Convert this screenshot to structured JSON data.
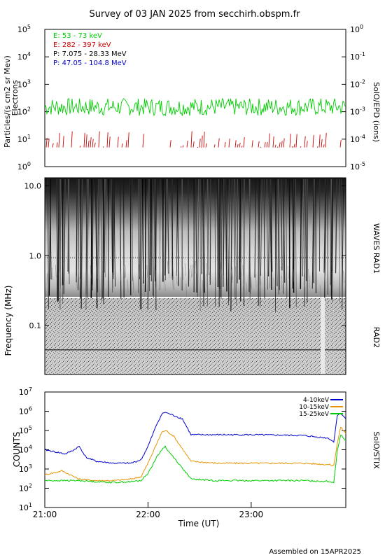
{
  "title": "Survey of 03 JAN 2025 from secchirh.obspm.fr",
  "footer": "Assembled on 15APR2025",
  "chart_data": [
    {
      "type": "line",
      "panel": "SolO/EPD",
      "title": "",
      "ylabel": "Particles/(s cm2 sr Mev)",
      "ylabel2": "Electrons",
      "right_label": "SolO/EPD (ions)",
      "yscale": "log",
      "ylim": [
        1,
        100000
      ],
      "ylim_right": [
        1e-05,
        1
      ],
      "y_ticks": [
        {
          "value": 1,
          "label": "10",
          "exp": "0"
        },
        {
          "value": 10,
          "label": "10",
          "exp": "1"
        },
        {
          "value": 100,
          "label": "10",
          "exp": "2"
        },
        {
          "value": 1000,
          "label": "10",
          "exp": "3"
        },
        {
          "value": 10000,
          "label": "10",
          "exp": "4"
        },
        {
          "value": 100000,
          "label": "10",
          "exp": "5"
        }
      ],
      "y_ticks_right": [
        {
          "value": 1e-05,
          "label": "10",
          "exp": "-5"
        },
        {
          "value": 0.0001,
          "label": "10",
          "exp": "-4"
        },
        {
          "value": 0.001,
          "label": "10",
          "exp": "-3"
        },
        {
          "value": 0.01,
          "label": "10",
          "exp": "-2"
        },
        {
          "value": 0.1,
          "label": "10",
          "exp": "-1"
        },
        {
          "value": 1,
          "label": "10",
          "exp": "0"
        }
      ],
      "legend": [
        {
          "label": "E: 53 - 73 keV",
          "color": "#00cc00"
        },
        {
          "label": "E: 282 - 397 keV",
          "color": "#cc0000"
        },
        {
          "label": "P: 7.075 - 28.33 MeV",
          "color": "#000000"
        },
        {
          "label": "P: 47.05 - 104.8 MeV",
          "color": "#0000cc"
        }
      ],
      "series": [
        {
          "name": "E: 53 - 73 keV",
          "color": "#00cc00",
          "typical": 150,
          "range": [
            60,
            300
          ]
        },
        {
          "name": "E: 282 - 397 keV",
          "color": "#cc0000",
          "typical": 5,
          "range": [
            4,
            20
          ]
        }
      ]
    },
    {
      "type": "heatmap",
      "panel": "WAVES RAD1 / RAD2",
      "ylabel": "Frequency (MHz)",
      "right_labels": [
        "WAVES RAD1",
        "RAD2"
      ],
      "yscale": "log",
      "ylim": [
        0.02,
        13
      ],
      "y_ticks": [
        {
          "value": 0.1,
          "label": "0.1"
        },
        {
          "value": 1.0,
          "label": "1.0"
        },
        {
          "value": 10.0,
          "label": "10.0"
        }
      ]
    },
    {
      "type": "line",
      "panel": "SolO/STIX",
      "ylabel": "COUNTS",
      "right_label": "SolO/STIX",
      "yscale": "log",
      "ylim": [
        10,
        10000000
      ],
      "xlabel": "Time (UT)",
      "xlim": [
        "21:00",
        "23:55"
      ],
      "x_ticks": [
        "21:00",
        "22:00",
        "23:00"
      ],
      "y_ticks": [
        {
          "value": 10,
          "label": "10",
          "exp": "1"
        },
        {
          "value": 100,
          "label": "10",
          "exp": "2"
        },
        {
          "value": 1000,
          "label": "10",
          "exp": "3"
        },
        {
          "value": 10000,
          "label": "10",
          "exp": "4"
        },
        {
          "value": 100000,
          "label": "10",
          "exp": "5"
        },
        {
          "value": 1000000,
          "label": "10",
          "exp": "6"
        },
        {
          "value": 10000000,
          "label": "10",
          "exp": "7"
        }
      ],
      "legend": [
        {
          "label": "4-10keV",
          "color": "#0000cc"
        },
        {
          "label": "10-15keV",
          "color": "#e69500"
        },
        {
          "label": "15-25keV",
          "color": "#00cc00"
        }
      ],
      "series": [
        {
          "name": "4-10keV",
          "color": "#0000cc",
          "x": [
            "21:00",
            "21:12",
            "21:17",
            "21:20",
            "21:24",
            "21:30",
            "21:40",
            "21:50",
            "21:56",
            "22:00",
            "22:05",
            "22:08",
            "22:10",
            "22:12",
            "22:15",
            "22:20",
            "22:25",
            "22:40",
            "23:00",
            "23:30",
            "23:45",
            "23:48",
            "23:50",
            "23:52",
            "23:55"
          ],
          "y": [
            10000,
            6000,
            10000,
            15000,
            4000,
            2500,
            2000,
            2000,
            3000,
            15000,
            200000,
            700000,
            900000,
            750000,
            600000,
            400000,
            60000,
            60000,
            60000,
            55000,
            40000,
            25000,
            600000,
            800000,
            400000
          ]
        },
        {
          "name": "10-15keV",
          "color": "#e69500",
          "x": [
            "21:00",
            "21:10",
            "21:20",
            "21:30",
            "21:40",
            "21:50",
            "21:56",
            "22:00",
            "22:05",
            "22:08",
            "22:10",
            "22:12",
            "22:15",
            "22:25",
            "22:40",
            "23:00",
            "23:30",
            "23:45",
            "23:48",
            "23:50",
            "23:52",
            "23:55"
          ],
          "y": [
            500,
            800,
            300,
            250,
            250,
            300,
            400,
            2000,
            20000,
            80000,
            100000,
            80000,
            50000,
            2500,
            2000,
            2000,
            2000,
            1700,
            1500,
            20000,
            150000,
            70000
          ]
        },
        {
          "name": "15-25keV",
          "color": "#00cc00",
          "x": [
            "21:00",
            "21:10",
            "21:20",
            "21:30",
            "21:40",
            "21:50",
            "21:56",
            "22:00",
            "22:05",
            "22:08",
            "22:10",
            "22:12",
            "22:15",
            "22:25",
            "22:40",
            "23:00",
            "23:30",
            "23:45",
            "23:48",
            "23:50",
            "23:52",
            "23:55"
          ],
          "y": [
            250,
            250,
            250,
            220,
            200,
            220,
            250,
            600,
            4000,
            10000,
            15000,
            8000,
            4000,
            300,
            250,
            250,
            250,
            230,
            200,
            8000,
            60000,
            30000
          ]
        }
      ]
    }
  ]
}
